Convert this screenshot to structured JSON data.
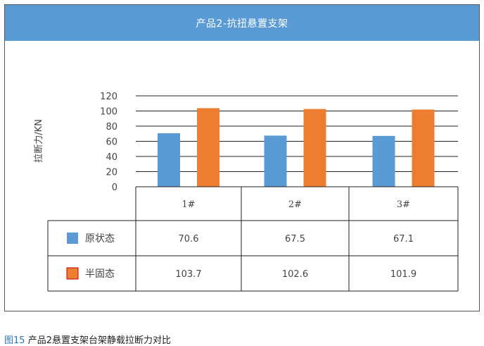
{
  "header": {
    "title": "产品2-抗扭悬置支架"
  },
  "caption": {
    "figure_no": "图15",
    "text": "产品2悬置支架台架静载拉断力对比"
  },
  "chart_data": {
    "type": "bar",
    "title": "产品2-抗扭悬置支架",
    "ylabel": "拉断力/KN",
    "xlabel": "",
    "categories": [
      "1#",
      "2#",
      "3#"
    ],
    "series": [
      {
        "name": "原状态",
        "values": [
          70.6,
          67.5,
          67.1
        ],
        "color": "#5b9bd5"
      },
      {
        "name": "半固态",
        "values": [
          103.7,
          102.6,
          101.9
        ],
        "color": "#ed7d31"
      }
    ],
    "ylim": [
      0,
      120
    ],
    "yticks": [
      "0",
      "20",
      "40",
      "60",
      "80",
      "100",
      "120"
    ],
    "grid": true,
    "table_labels": [
      [
        "70.6",
        "67.5",
        "67.1"
      ],
      [
        "103.7",
        "102.6",
        "101.9"
      ]
    ]
  }
}
